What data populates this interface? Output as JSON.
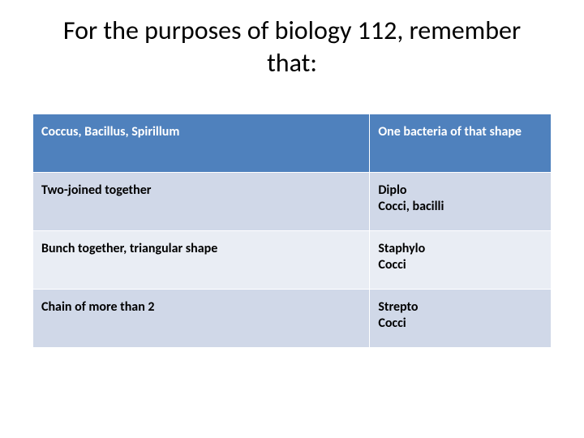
{
  "title": "For the purposes of biology 112, remember that:",
  "table": {
    "type": "table",
    "columns": [
      "term",
      "meaning"
    ],
    "col_widths_pct": [
      65,
      35
    ],
    "header_bg": "#4f81bd",
    "header_fg": "#ffffff",
    "row_bg_alt": [
      "#d0d8e8",
      "#e9edf4"
    ],
    "border_color": "#ffffff",
    "font_size_pt": 12,
    "font_weight": "bold",
    "header": {
      "c0": "Coccus, Bacillus, Spirillum",
      "c1": "One bacteria of that shape"
    },
    "rows": [
      {
        "c0": "Two-joined together",
        "c1": "Diplo\nCocci, bacilli"
      },
      {
        "c0": "Bunch together, triangular shape",
        "c1": "Staphylo\nCocci"
      },
      {
        "c0": "Chain of more than 2",
        "c1": "Strepto\nCocci"
      }
    ]
  }
}
